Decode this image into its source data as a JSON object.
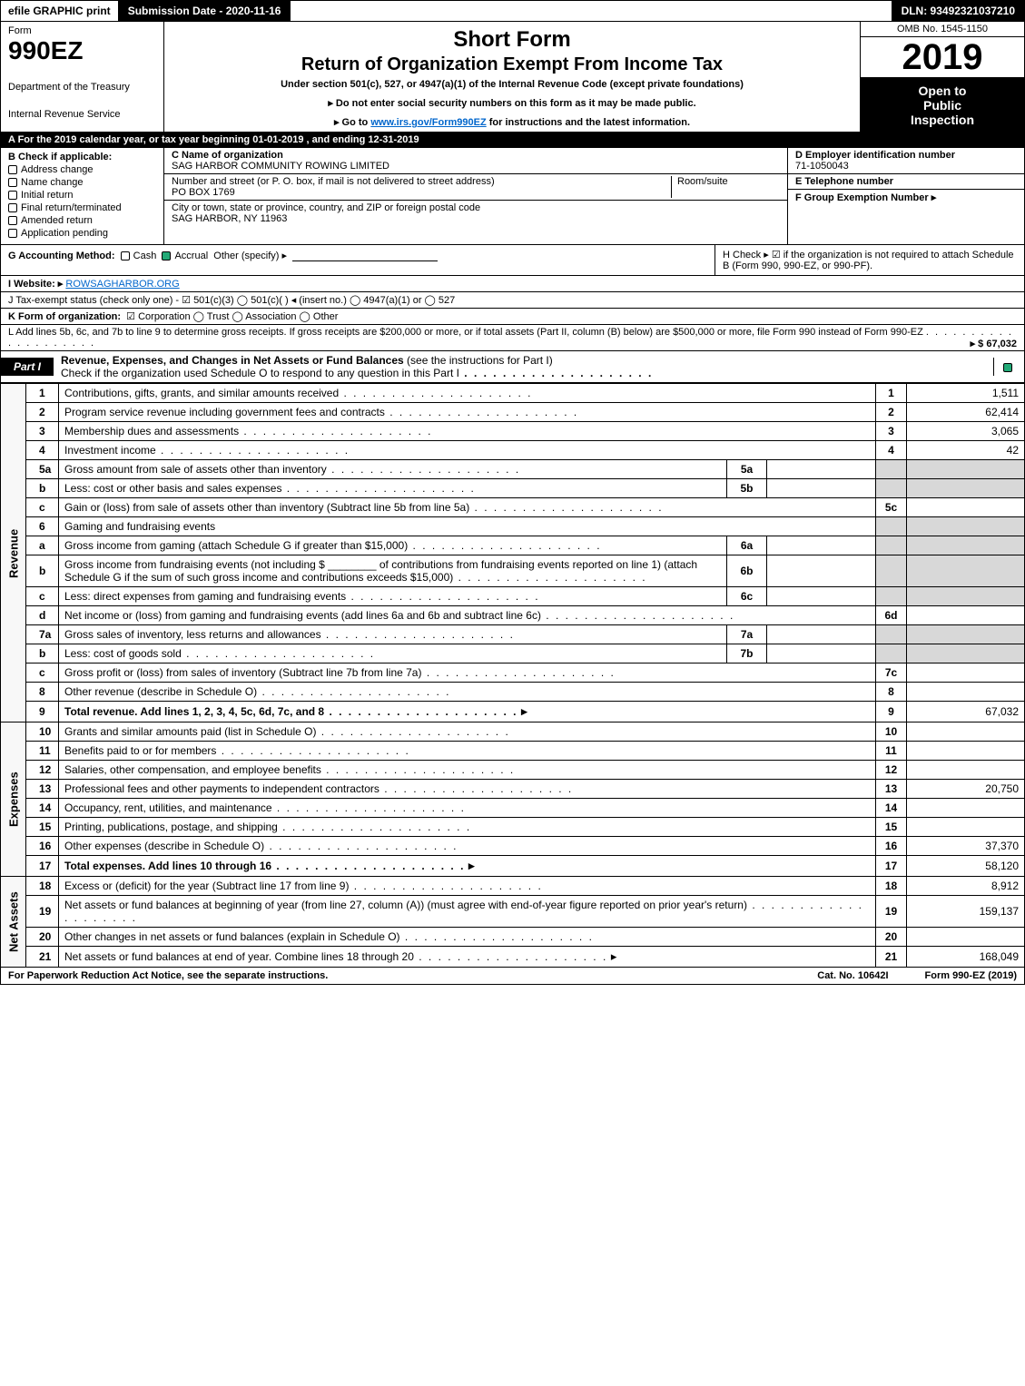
{
  "topbar": {
    "efile": "efile GRAPHIC print",
    "submission_label": "Submission Date - 2020-11-16",
    "dln_label": "DLN: 93492321037210"
  },
  "header": {
    "form_label": "Form",
    "form_number": "990EZ",
    "dept": "Department of the Treasury",
    "irs": "Internal Revenue Service",
    "title1": "Short Form",
    "title2": "Return of Organization Exempt From Income Tax",
    "subtitle": "Under section 501(c), 527, or 4947(a)(1) of the Internal Revenue Code (except private foundations)",
    "note1": "▸ Do not enter social security numbers on this form as it may be made public.",
    "note2_pre": "▸ Go to ",
    "note2_link": "www.irs.gov/Form990EZ",
    "note2_post": " for instructions and the latest information.",
    "omb": "OMB No. 1545-1150",
    "year": "2019",
    "inspect1": "Open to",
    "inspect2": "Public",
    "inspect3": "Inspection"
  },
  "taxyear": {
    "prefix": "A  For the 2019 calendar year, or tax year beginning ",
    "start": "01-01-2019",
    "mid": " , and ending ",
    "end": "12-31-2019"
  },
  "section_b": {
    "header": "B  Check if applicable:",
    "items": [
      {
        "label": "Address change",
        "checked": false
      },
      {
        "label": "Name change",
        "checked": false
      },
      {
        "label": "Initial return",
        "checked": false
      },
      {
        "label": "Final return/terminated",
        "checked": false
      },
      {
        "label": "Amended return",
        "checked": false
      },
      {
        "label": "Application pending",
        "checked": false
      }
    ]
  },
  "section_c": {
    "name_label": "C Name of organization",
    "name": "SAG HARBOR COMMUNITY ROWING LIMITED",
    "addr_label": "Number and street (or P. O. box, if mail is not delivered to street address)",
    "addr": "PO BOX 1769",
    "suite_label": "Room/suite",
    "city_label": "City or town, state or province, country, and ZIP or foreign postal code",
    "city": "SAG HARBOR, NY  11963"
  },
  "section_d": {
    "ein_label": "D Employer identification number",
    "ein": "71-1050043",
    "phone_label": "E Telephone number",
    "group_label": "F Group Exemption Number  ▸"
  },
  "section_g": {
    "label": "G Accounting Method:",
    "cash": "Cash",
    "accrual": "Accrual",
    "other": "Other (specify) ▸",
    "accrual_checked": true
  },
  "section_h": {
    "text": "H  Check ▸ ☑ if the organization is not required to attach Schedule B (Form 990, 990-EZ, or 990-PF)."
  },
  "section_i": {
    "label": "I Website: ▸",
    "url": "ROWSAGHARBOR.ORG"
  },
  "section_j": {
    "text": "J Tax-exempt status (check only one) - ☑ 501(c)(3)  ◯ 501(c)(  ) ◂ (insert no.)  ◯ 4947(a)(1) or  ◯ 527"
  },
  "section_k": {
    "label": "K Form of organization:",
    "opts": "☑ Corporation   ◯ Trust   ◯ Association   ◯ Other"
  },
  "section_l": {
    "text": "L Add lines 5b, 6c, and 7b to line 9 to determine gross receipts. If gross receipts are $200,000 or more, or if total assets (Part II, column (B) below) are $500,000 or more, file Form 990 instead of Form 990-EZ",
    "amount": "▸ $ 67,032"
  },
  "part1": {
    "tag": "Part I",
    "title": "Revenue, Expenses, and Changes in Net Assets or Fund Balances",
    "title_note": " (see the instructions for Part I)",
    "sub": "Check if the organization used Schedule O to respond to any question in this Part I",
    "checked": true
  },
  "sidebars": {
    "revenue": "Revenue",
    "expenses": "Expenses",
    "netassets": "Net Assets"
  },
  "lines": [
    {
      "n": "1",
      "desc": "Contributions, gifts, grants, and similar amounts received",
      "r": "1",
      "val": "1,511"
    },
    {
      "n": "2",
      "desc": "Program service revenue including government fees and contracts",
      "r": "2",
      "val": "62,414"
    },
    {
      "n": "3",
      "desc": "Membership dues and assessments",
      "r": "3",
      "val": "3,065"
    },
    {
      "n": "4",
      "desc": "Investment income",
      "r": "4",
      "val": "42"
    },
    {
      "n": "5a",
      "desc": "Gross amount from sale of assets other than inventory",
      "sub": "5a",
      "shade_r": true
    },
    {
      "n": "b",
      "desc": "Less: cost or other basis and sales expenses",
      "sub": "5b",
      "shade_r": true
    },
    {
      "n": "c",
      "desc": "Gain or (loss) from sale of assets other than inventory (Subtract line 5b from line 5a)",
      "r": "5c",
      "val": ""
    },
    {
      "n": "6",
      "desc": "Gaming and fundraising events",
      "shade_r": true,
      "no_r": true
    },
    {
      "n": "a",
      "desc": "Gross income from gaming (attach Schedule G if greater than $15,000)",
      "sub": "6a",
      "shade_r": true
    },
    {
      "n": "b",
      "desc": "Gross income from fundraising events (not including $ ________ of contributions from fundraising events reported on line 1) (attach Schedule G if the sum of such gross income and contributions exceeds $15,000)",
      "sub": "6b",
      "shade_r": true
    },
    {
      "n": "c",
      "desc": "Less: direct expenses from gaming and fundraising events",
      "sub": "6c",
      "shade_r": true
    },
    {
      "n": "d",
      "desc": "Net income or (loss) from gaming and fundraising events (add lines 6a and 6b and subtract line 6c)",
      "r": "6d",
      "val": ""
    },
    {
      "n": "7a",
      "desc": "Gross sales of inventory, less returns and allowances",
      "sub": "7a",
      "shade_r": true
    },
    {
      "n": "b",
      "desc": "Less: cost of goods sold",
      "sub": "7b",
      "shade_r": true
    },
    {
      "n": "c",
      "desc": "Gross profit or (loss) from sales of inventory (Subtract line 7b from line 7a)",
      "r": "7c",
      "val": ""
    },
    {
      "n": "8",
      "desc": "Other revenue (describe in Schedule O)",
      "r": "8",
      "val": ""
    },
    {
      "n": "9",
      "desc": "Total revenue. Add lines 1, 2, 3, 4, 5c, 6d, 7c, and 8",
      "r": "9",
      "val": "67,032",
      "bold": true,
      "arrow": true
    }
  ],
  "exp_lines": [
    {
      "n": "10",
      "desc": "Grants and similar amounts paid (list in Schedule O)",
      "r": "10",
      "val": ""
    },
    {
      "n": "11",
      "desc": "Benefits paid to or for members",
      "r": "11",
      "val": ""
    },
    {
      "n": "12",
      "desc": "Salaries, other compensation, and employee benefits",
      "r": "12",
      "val": ""
    },
    {
      "n": "13",
      "desc": "Professional fees and other payments to independent contractors",
      "r": "13",
      "val": "20,750"
    },
    {
      "n": "14",
      "desc": "Occupancy, rent, utilities, and maintenance",
      "r": "14",
      "val": ""
    },
    {
      "n": "15",
      "desc": "Printing, publications, postage, and shipping",
      "r": "15",
      "val": ""
    },
    {
      "n": "16",
      "desc": "Other expenses (describe in Schedule O)",
      "r": "16",
      "val": "37,370"
    },
    {
      "n": "17",
      "desc": "Total expenses. Add lines 10 through 16",
      "r": "17",
      "val": "58,120",
      "bold": true,
      "arrow": true
    }
  ],
  "na_lines": [
    {
      "n": "18",
      "desc": "Excess or (deficit) for the year (Subtract line 17 from line 9)",
      "r": "18",
      "val": "8,912"
    },
    {
      "n": "19",
      "desc": "Net assets or fund balances at beginning of year (from line 27, column (A)) (must agree with end-of-year figure reported on prior year's return)",
      "r": "19",
      "val": "159,137",
      "shade_r_top": true
    },
    {
      "n": "20",
      "desc": "Other changes in net assets or fund balances (explain in Schedule O)",
      "r": "20",
      "val": ""
    },
    {
      "n": "21",
      "desc": "Net assets or fund balances at end of year. Combine lines 18 through 20",
      "r": "21",
      "val": "168,049",
      "arrow": true
    }
  ],
  "footer": {
    "left": "For Paperwork Reduction Act Notice, see the separate instructions.",
    "mid": "Cat. No. 10642I",
    "right": "Form 990-EZ (2019)"
  },
  "colors": {
    "black": "#000000",
    "white": "#ffffff",
    "shade": "#d8d8d8",
    "link": "#0066cc",
    "check_green": "#22aa77"
  }
}
